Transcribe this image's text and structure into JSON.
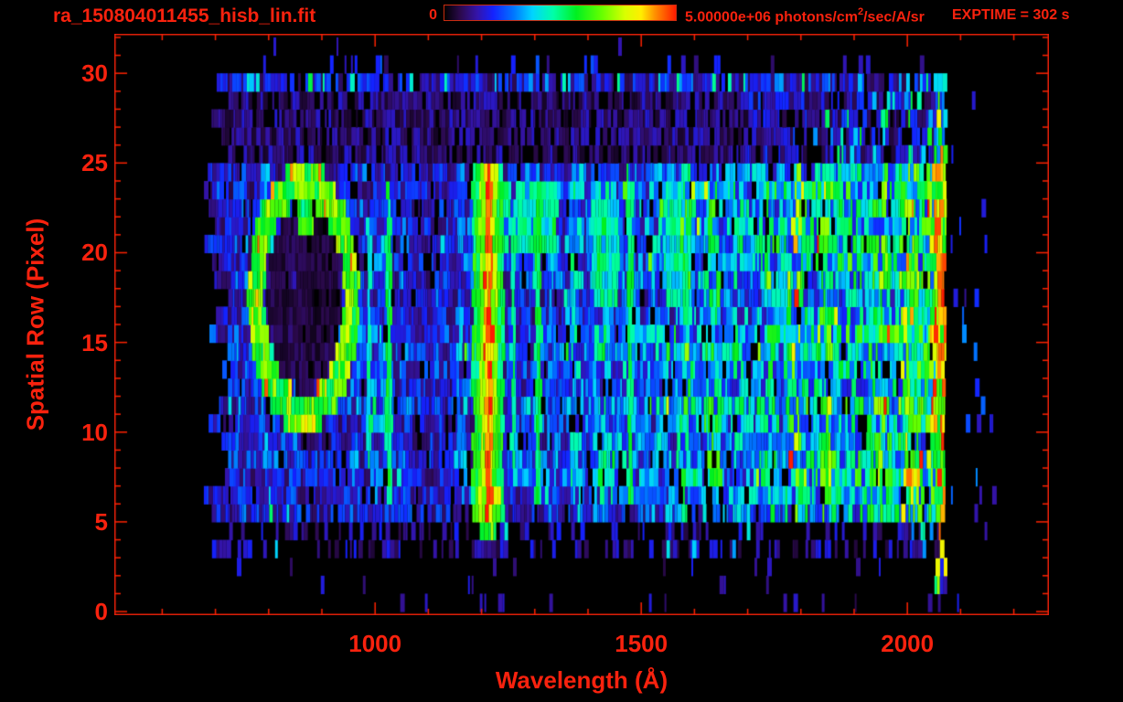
{
  "header": {
    "title": "ra_150804011455_hisb_lin.fit",
    "exptime_label": "EXPTIME = 302 s"
  },
  "colorbar": {
    "min_label": "0",
    "max_label_pre": "5.00000e+06 photons/cm",
    "max_label_sup": "2",
    "max_label_post": "/sec/A/sr"
  },
  "axes": {
    "x_title": "Wavelength (Å)",
    "y_title": "Spatial Row (Pixel)",
    "x_tick_labels": [
      "1000",
      "1500",
      "2000"
    ],
    "y_tick_labels": [
      "0",
      "5",
      "10",
      "15",
      "20",
      "25",
      "30"
    ]
  },
  "colors": {
    "accent_text": "#f8220e",
    "axis_line": "#e8200a",
    "tick_mark": "#ff2200",
    "colorbar_border": "#c92c10"
  },
  "chart_data": {
    "type": "heatmap",
    "title": "ra_150804011455_hisb_lin.fit",
    "xlabel": "Wavelength (Å)",
    "ylabel": "Spatial Row (Pixel)",
    "xlim": [
      510,
      2266
    ],
    "ylim": [
      -0.2,
      32.2
    ],
    "x_ticks_major": [
      1000,
      1500,
      2000
    ],
    "x_tick_minor_step": 100,
    "x_minor_range": [
      600,
      2200
    ],
    "y_ticks_major": [
      0,
      5,
      10,
      15,
      20,
      25,
      30
    ],
    "y_tick_minor_step": 1,
    "y_minor_range": [
      0,
      32
    ],
    "detector_rows": 32,
    "exposure_time_s": 302,
    "colorbar": {
      "min": 0,
      "max": 5000000,
      "max_label": "5.00000e+06",
      "units": "photons/cm^2/sec/A/sr"
    },
    "colormap": [
      [
        0.0,
        "#000000"
      ],
      [
        0.07,
        "#2c0a4e"
      ],
      [
        0.14,
        "#3414a8"
      ],
      [
        0.21,
        "#1422ff"
      ],
      [
        0.3,
        "#0077ff"
      ],
      [
        0.38,
        "#00d4ff"
      ],
      [
        0.47,
        "#00ffa8"
      ],
      [
        0.57,
        "#00f020"
      ],
      [
        0.68,
        "#66ff00"
      ],
      [
        0.78,
        "#d8ff00"
      ],
      [
        0.85,
        "#ffee00"
      ],
      [
        0.91,
        "#ff9000"
      ],
      [
        1.0,
        "#ff1c00"
      ]
    ],
    "seed": 20150804,
    "features": [
      {
        "name": "main-noise-band",
        "rows": [
          5,
          24
        ],
        "wavelength_range": [
          690,
          2052
        ],
        "base_intensity": 0.2
      },
      {
        "name": "upper-noise-band",
        "rows": [
          25,
          29
        ],
        "wavelength_range": [
          690,
          2072
        ],
        "base_intensity": 0.12
      },
      {
        "name": "sparse-bottom-noise",
        "rows": [
          0,
          4
        ],
        "wavelength_range": [
          690,
          2150
        ],
        "base_intensity": 0.08
      },
      {
        "name": "ring-artifact",
        "wavelength_center": 866,
        "row_center": 17.5,
        "wavelength_radius": 90,
        "row_radius": 6.4,
        "intensity": 0.7
      },
      {
        "name": "lyman-alpha-emission-line",
        "wavelength": 1213,
        "rows": [
          5,
          24
        ],
        "half_width": 16,
        "intensity": 0.95
      },
      {
        "name": "emission-line",
        "wavelength": 989,
        "rows": [
          8,
          21
        ],
        "half_width": 4,
        "intensity": 0.42
      },
      {
        "name": "emission-line",
        "wavelength": 1026,
        "rows": [
          6,
          23
        ],
        "half_width": 5,
        "intensity": 0.5
      },
      {
        "name": "emission-line",
        "wavelength": 1260,
        "rows": [
          7,
          20
        ],
        "half_width": 4,
        "intensity": 0.45
      },
      {
        "name": "emission-line",
        "wavelength": 1306,
        "rows": [
          6,
          23
        ],
        "half_width": 6,
        "intensity": 0.5
      },
      {
        "name": "emission-line",
        "wavelength": 1480,
        "rows": [
          6,
          23
        ],
        "half_width": 5,
        "intensity": 0.5
      },
      {
        "name": "continuum-brightening",
        "wavelength_range": [
          1250,
          2052
        ],
        "rows": [
          5,
          24
        ],
        "intensity_gain": 0.3
      },
      {
        "name": "bright-row-bands",
        "bands": [
          {
            "rows": [
              19,
              23
            ],
            "boost": 0.1
          },
          {
            "rows": [
              17,
              18
            ],
            "boost": 0.05
          },
          {
            "rows": [
              13,
              16
            ],
            "boost": 0.04
          },
          {
            "rows": [
              7,
              11
            ],
            "boost": 0.07
          }
        ]
      },
      {
        "name": "red-cutoff-edge",
        "wavelength_range": [
          2052,
          2072
        ],
        "rows": [
          1,
          29
        ],
        "intensity": 0.9
      }
    ]
  }
}
